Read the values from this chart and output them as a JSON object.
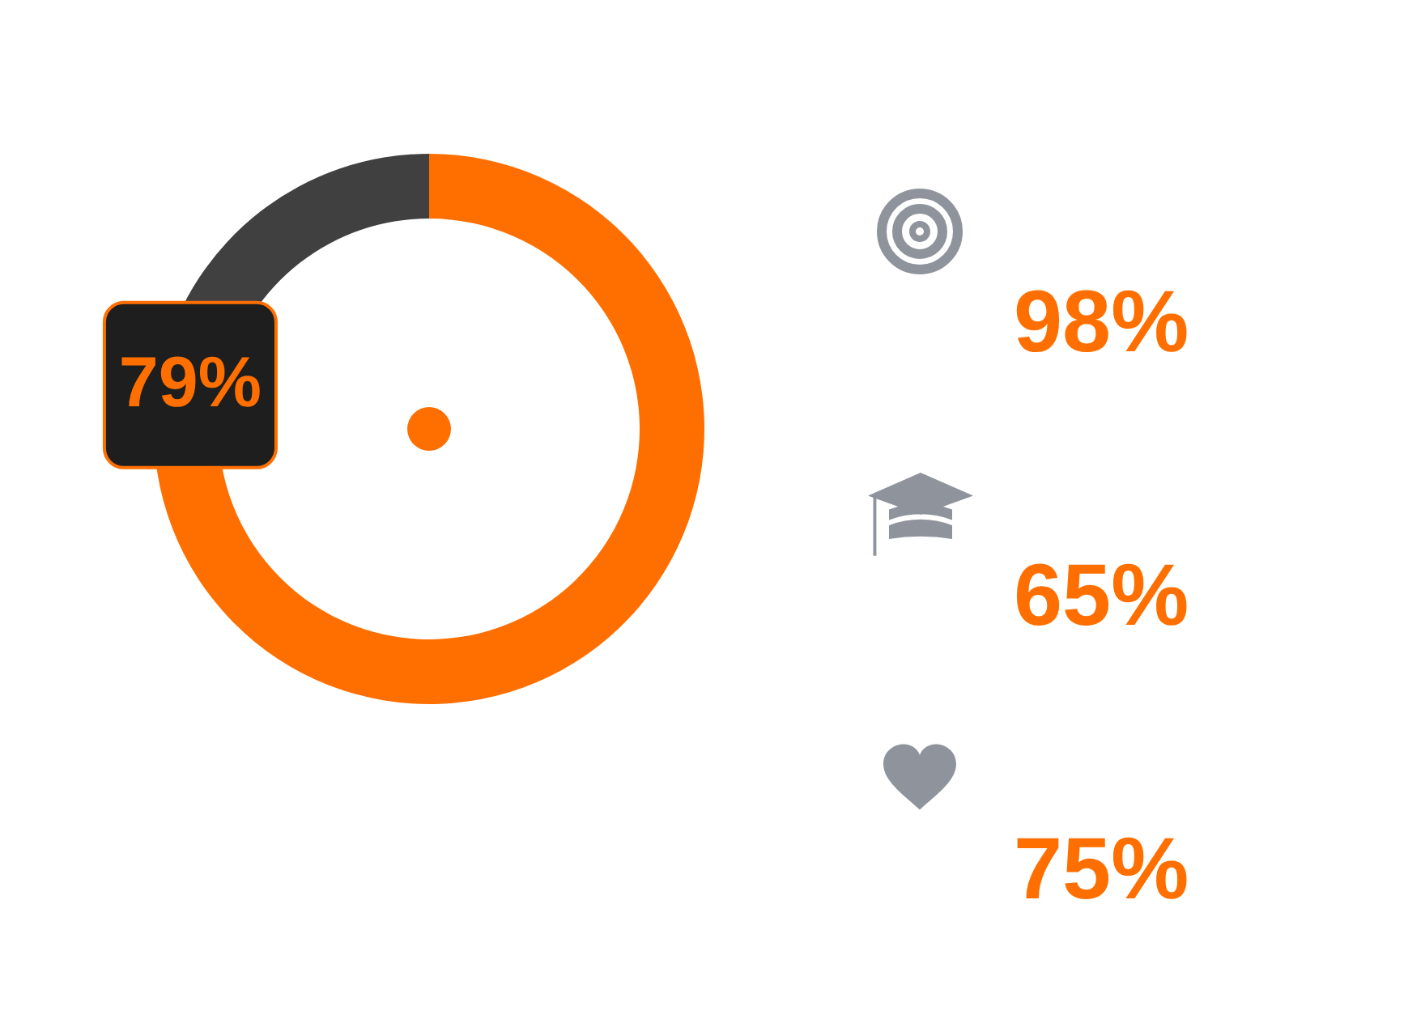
{
  "chart_data": [
    {
      "type": "donut",
      "categories": [
        null,
        null
      ],
      "values": [
        79,
        21
      ],
      "colors": [
        "#ff6f00",
        "#404040"
      ],
      "value_labels": [
        "79%",
        null
      ]
    },
    {
      "type": "other",
      "annotations": [
        "98%",
        "65%",
        "75%"
      ]
    }
  ]
}
